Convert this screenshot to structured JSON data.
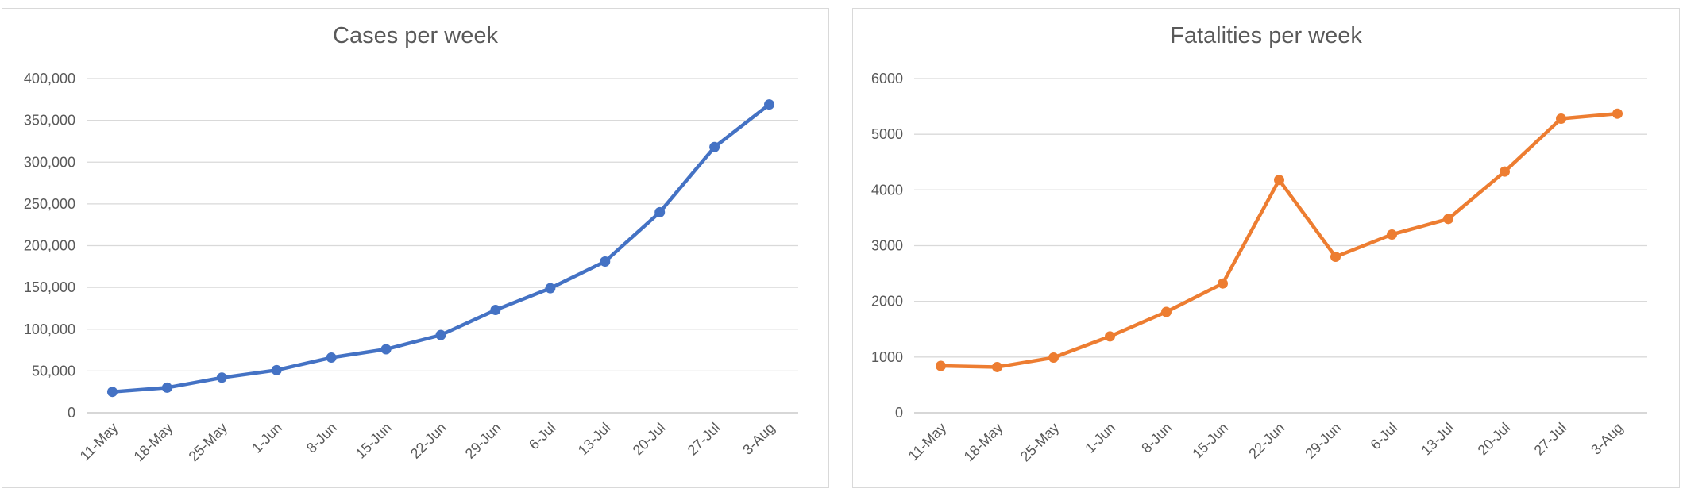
{
  "chart_data": [
    {
      "type": "line",
      "title": "Cases per week",
      "categories": [
        "11-May",
        "18-May",
        "25-May",
        "1-Jun",
        "8-Jun",
        "15-Jun",
        "22-Jun",
        "29-Jun",
        "6-Jul",
        "13-Jul",
        "20-Jul",
        "27-Jul",
        "3-Aug"
      ],
      "series": [
        {
          "values": [
            25000,
            30000,
            42000,
            51000,
            66000,
            76000,
            93000,
            123000,
            149000,
            181000,
            240000,
            318000,
            369000
          ],
          "color": "#4472c4"
        }
      ],
      "ylim": [
        0,
        400000
      ],
      "yticks": [
        0,
        50000,
        100000,
        150000,
        200000,
        250000,
        300000,
        350000,
        400000
      ],
      "ytick_labels": [
        "0",
        "50,000",
        "100,000",
        "150,000",
        "200,000",
        "250,000",
        "300,000",
        "350,000",
        "400,000"
      ],
      "grid": true,
      "legend": "none"
    },
    {
      "type": "line",
      "title": "Fatalities per week",
      "categories": [
        "11-May",
        "18-May",
        "25-May",
        "1-Jun",
        "8-Jun",
        "15-Jun",
        "22-Jun",
        "29-Jun",
        "6-Jul",
        "13-Jul",
        "20-Jul",
        "27-Jul",
        "3-Aug"
      ],
      "series": [
        {
          "values": [
            840,
            820,
            990,
            1370,
            1810,
            2320,
            4180,
            2800,
            3200,
            3480,
            4330,
            5280,
            5370
          ],
          "color": "#ed7d31"
        }
      ],
      "ylim": [
        0,
        6000
      ],
      "yticks": [
        0,
        1000,
        2000,
        3000,
        4000,
        5000,
        6000
      ],
      "ytick_labels": [
        "0",
        "1000",
        "2000",
        "3000",
        "4000",
        "5000",
        "6000"
      ],
      "grid": true,
      "legend": "none"
    }
  ]
}
